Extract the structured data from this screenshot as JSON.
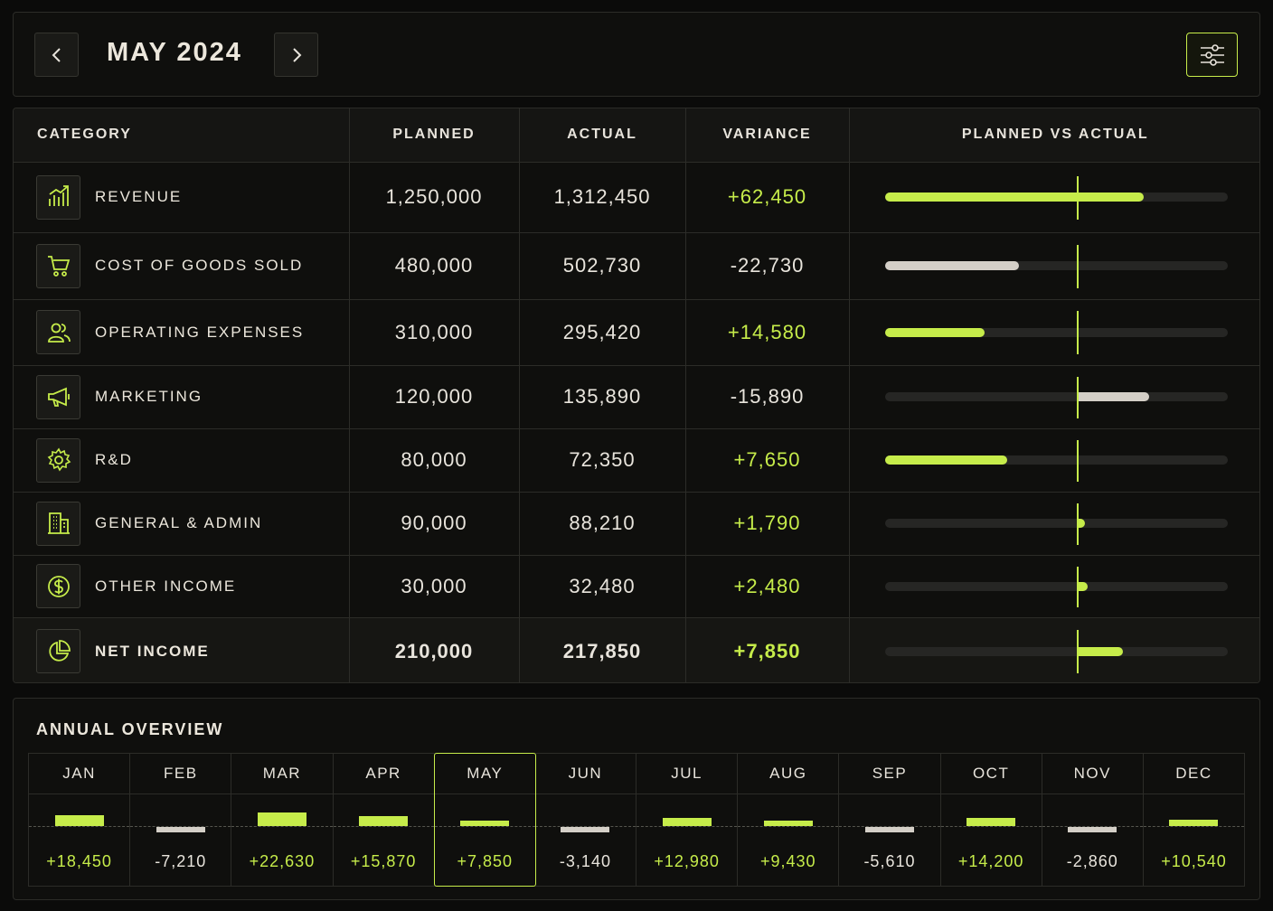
{
  "header": {
    "title": "MAY 2024",
    "prev_icon": "chevron-left-icon",
    "next_icon": "chevron-right-icon",
    "filter_icon": "sliders-icon"
  },
  "colors": {
    "accent": "#c6ec4a",
    "negative": "#d4cfc7",
    "background": "#0b0b0a"
  },
  "table": {
    "columns": [
      "CATEGORY",
      "PLANNED",
      "ACTUAL",
      "VARIANCE",
      "PLANNED VS ACTUAL"
    ],
    "rows": [
      {
        "label": "REVENUE",
        "icon": "chart-up-icon",
        "planned": "1,250,000",
        "actual": "1,312,450",
        "variance": "+62,450",
        "variance_value": 62450
      },
      {
        "label": "COST OF GOODS SOLD",
        "icon": "cart-icon",
        "planned": "480,000",
        "actual": "502,730",
        "variance": "-22,730",
        "variance_value": -22730
      },
      {
        "label": "OPERATING EXPENSES",
        "icon": "users-icon",
        "planned": "310,000",
        "actual": "295,420",
        "variance": "+14,580",
        "variance_value": 14580
      },
      {
        "label": "MARKETING",
        "icon": "megaphone-icon",
        "planned": "120,000",
        "actual": "135,890",
        "variance": "-15,890",
        "variance_value": -15890
      },
      {
        "label": "R&D",
        "icon": "gear-icon",
        "planned": "80,000",
        "actual": "72,350",
        "variance": "+7,650",
        "variance_value": 7650
      },
      {
        "label": "GENERAL & ADMIN",
        "icon": "building-icon",
        "planned": "90,000",
        "actual": "88,210",
        "variance": "+1,790",
        "variance_value": 1790
      },
      {
        "label": "OTHER INCOME",
        "icon": "dollar-coin-icon",
        "planned": "30,000",
        "actual": "32,480",
        "variance": "+2,480",
        "variance_value": 2480
      },
      {
        "label": "NET INCOME",
        "icon": "pie-chart-icon",
        "planned": "210,000",
        "actual": "217,850",
        "variance": "+7,850",
        "variance_value": 7850,
        "total": true
      }
    ]
  },
  "annual": {
    "title": "ANNUAL OVERVIEW",
    "selected": "MAY",
    "months": [
      {
        "name": "JAN",
        "value": "+18,450",
        "amount": 18450
      },
      {
        "name": "FEB",
        "value": "-7,210",
        "amount": -7210
      },
      {
        "name": "MAR",
        "value": "+22,630",
        "amount": 22630
      },
      {
        "name": "APR",
        "value": "+15,870",
        "amount": 15870
      },
      {
        "name": "MAY",
        "value": "+7,850",
        "amount": 7850
      },
      {
        "name": "JUN",
        "value": "-3,140",
        "amount": -3140
      },
      {
        "name": "JUL",
        "value": "+12,980",
        "amount": 12980
      },
      {
        "name": "AUG",
        "value": "+9,430",
        "amount": 9430
      },
      {
        "name": "SEP",
        "value": "-5,610",
        "amount": -5610
      },
      {
        "name": "OCT",
        "value": "+14,200",
        "amount": 14200
      },
      {
        "name": "NOV",
        "value": "-2,860",
        "amount": -2860
      },
      {
        "name": "DEC",
        "value": "+10,540",
        "amount": 10540
      }
    ]
  }
}
